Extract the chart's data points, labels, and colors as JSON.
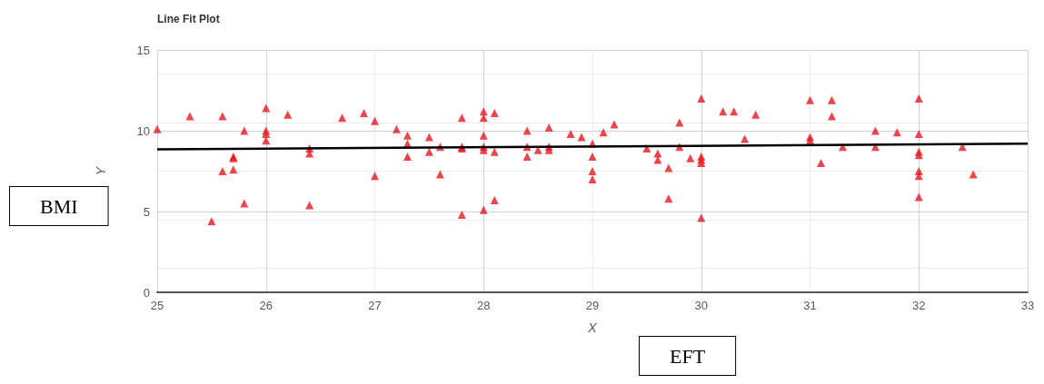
{
  "chart_data": {
    "type": "scatter",
    "title": "Line Fit Plot",
    "xlabel": "X",
    "ylabel": "Y",
    "annotations": [
      "BMI",
      "EFT"
    ],
    "xlim": [
      25,
      33
    ],
    "xticks": [
      25,
      26,
      27,
      28,
      29,
      30,
      31,
      32,
      33
    ],
    "ylim": [
      0,
      15
    ],
    "yticks": [
      0,
      5,
      10,
      15
    ],
    "grid": true,
    "marker": "triangle",
    "series": [
      {
        "color": "#e8161e",
        "x": [
          25.0,
          25.3,
          25.5,
          25.6,
          25.6,
          25.7,
          25.7,
          25.7,
          25.8,
          25.8,
          26.0,
          26.0,
          26.0,
          26.0,
          26.2,
          26.4,
          26.4,
          26.4,
          26.7,
          26.9,
          27.0,
          27.0,
          27.2,
          27.3,
          27.3,
          27.3,
          27.5,
          27.5,
          27.6,
          27.6,
          27.8,
          27.8,
          27.8,
          27.8,
          28.0,
          28.0,
          28.0,
          28.0,
          28.0,
          28.0,
          28.1,
          28.1,
          28.1,
          28.4,
          28.4,
          28.4,
          28.5,
          28.6,
          28.6,
          28.6,
          28.8,
          28.9,
          29.0,
          29.0,
          29.0,
          29.0,
          29.1,
          29.2,
          29.5,
          29.6,
          29.6,
          29.7,
          29.7,
          29.8,
          29.8,
          29.9,
          30.0,
          30.0,
          30.0,
          30.0,
          30.0,
          30.2,
          30.3,
          30.4,
          30.5,
          31.0,
          31.0,
          31.0,
          31.1,
          31.2,
          31.2,
          31.3,
          31.6,
          31.6,
          31.8,
          32.0,
          32.0,
          32.0,
          32.0,
          32.0,
          32.0,
          32.0,
          32.4,
          32.5
        ],
        "values": [
          10.1,
          10.9,
          4.4,
          10.9,
          7.5,
          8.4,
          8.3,
          7.6,
          10.0,
          5.5,
          11.4,
          10.0,
          9.8,
          9.4,
          11.0,
          8.9,
          8.6,
          5.4,
          10.8,
          11.1,
          10.6,
          7.2,
          10.1,
          9.7,
          9.2,
          8.4,
          9.6,
          8.7,
          9.0,
          7.3,
          10.8,
          9.0,
          8.9,
          4.8,
          11.2,
          10.8,
          9.7,
          9.0,
          8.8,
          5.1,
          11.1,
          8.7,
          5.7,
          10.0,
          9.0,
          8.4,
          8.8,
          10.2,
          9.0,
          8.8,
          9.8,
          9.6,
          9.2,
          8.4,
          7.5,
          7.0,
          9.9,
          10.4,
          8.9,
          8.6,
          8.2,
          7.7,
          5.8,
          10.5,
          9.0,
          8.3,
          12.0,
          8.4,
          8.2,
          8.0,
          4.6,
          11.2,
          11.2,
          9.5,
          11.0,
          11.9,
          9.6,
          9.4,
          8.0,
          11.9,
          10.9,
          9.0,
          10.0,
          9.0,
          9.9,
          12.0,
          9.8,
          8.7,
          8.5,
          7.5,
          7.2,
          5.9,
          9.0,
          7.3
        ]
      },
      {
        "type": "line",
        "color": "#000000",
        "marker": "none",
        "line_style": "solid",
        "x": [
          25,
          33
        ],
        "values": [
          8.85,
          9.2
        ]
      }
    ]
  }
}
